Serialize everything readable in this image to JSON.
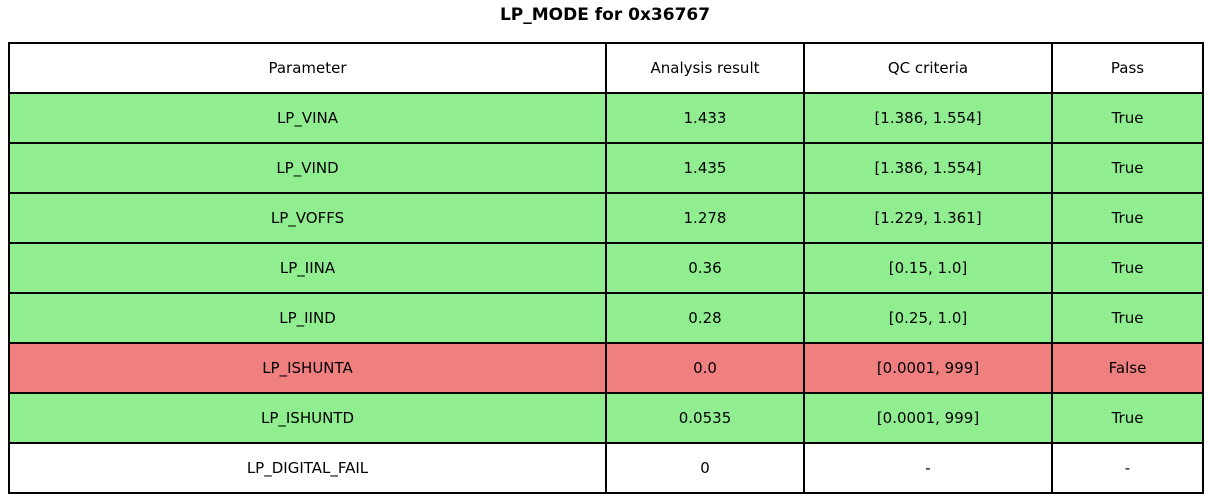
{
  "title": "LP_MODE for 0x36767",
  "colors": {
    "pass": "#90EE90",
    "fail": "#F08080",
    "neutral": "#FFFFFF",
    "border": "#000000"
  },
  "table": {
    "columns": [
      "Parameter",
      "Analysis result",
      "QC criteria",
      "Pass"
    ],
    "rows": [
      {
        "parameter": "LP_VINA",
        "result": "1.433",
        "criteria": "[1.386, 1.554]",
        "pass": "True",
        "status": "pass"
      },
      {
        "parameter": "LP_VIND",
        "result": "1.435",
        "criteria": "[1.386, 1.554]",
        "pass": "True",
        "status": "pass"
      },
      {
        "parameter": "LP_VOFFS",
        "result": "1.278",
        "criteria": "[1.229, 1.361]",
        "pass": "True",
        "status": "pass"
      },
      {
        "parameter": "LP_IINA",
        "result": "0.36",
        "criteria": "[0.15, 1.0]",
        "pass": "True",
        "status": "pass"
      },
      {
        "parameter": "LP_IIND",
        "result": "0.28",
        "criteria": "[0.25, 1.0]",
        "pass": "True",
        "status": "pass"
      },
      {
        "parameter": "LP_ISHUNTA",
        "result": "0.0",
        "criteria": "[0.0001, 999]",
        "pass": "False",
        "status": "fail"
      },
      {
        "parameter": "LP_ISHUNTD",
        "result": "0.0535",
        "criteria": "[0.0001, 999]",
        "pass": "True",
        "status": "pass"
      },
      {
        "parameter": "LP_DIGITAL_FAIL",
        "result": "0",
        "criteria": "-",
        "pass": "-",
        "status": "neutral"
      }
    ]
  }
}
